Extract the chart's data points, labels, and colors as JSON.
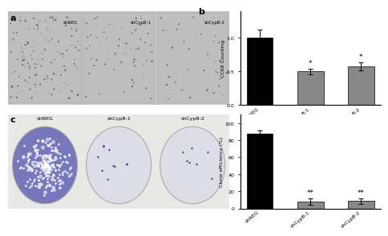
{
  "panel_a_label": "a",
  "panel_b_label": "b",
  "panel_c_label": "c",
  "bar_categories": [
    "shNEG",
    "shCypB-1",
    "shCypB-2"
  ],
  "cck8_values": [
    1.0,
    0.5,
    0.58
  ],
  "cck8_errors": [
    0.12,
    0.04,
    0.06
  ],
  "cck8_ylabel": "CCK8 Counting",
  "cck8_ylim": [
    0,
    1.4
  ],
  "cck8_yticks": [
    0.0,
    0.5,
    1.0
  ],
  "clone_values": [
    88.0,
    8.0,
    8.5
  ],
  "clone_errors": [
    3.0,
    3.5,
    3.0
  ],
  "clone_ylabel": "Clone efficiency (%)",
  "clone_ylim": [
    0,
    110
  ],
  "clone_yticks": [
    0,
    20,
    40,
    60,
    80,
    100
  ],
  "bar_colors": [
    "#000000",
    "#888888",
    "#888888"
  ],
  "significance_cck8": [
    "",
    "*",
    "*"
  ],
  "significance_clone": [
    "",
    "**",
    "**"
  ],
  "bg_color": "#ffffff",
  "microscopy_bg": "#c8c8c8",
  "microscopy_cell_color": "#555555",
  "microscopy_labels": [
    "shNEG",
    "shCypB-1",
    "shCypB-2"
  ],
  "dish_labels": [
    "shNEG",
    "shCypB-1",
    "shCypB-2"
  ],
  "dish_color_1": "#7777bb",
  "dish_color_23": "#dddde8",
  "dish_bg": "#e8e8e8",
  "panel_bg": "#f0f0f0"
}
